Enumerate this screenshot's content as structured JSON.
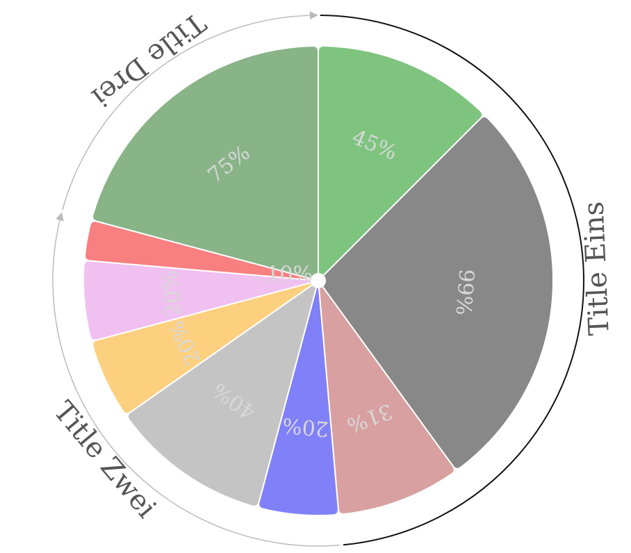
{
  "chart_data": {
    "type": "pie",
    "groups": [
      {
        "title": "Title Eins",
        "slices": [
          {
            "label": "45%",
            "value": 45,
            "color": "#7ec47e",
            "fraction": 0.1245
          },
          {
            "label": "99%",
            "value": 99,
            "color": "#888888",
            "fraction": 0.2739
          },
          {
            "label": "31%",
            "value": 31,
            "color": "#d8a0a0",
            "fraction": 0.0857
          }
        ]
      },
      {
        "title": "Title Zwei",
        "slices": [
          {
            "label": "20%",
            "value": 20,
            "color": "#8080f8",
            "fraction": 0.0553
          },
          {
            "label": "40%",
            "value": 40,
            "color": "#c4c4c4",
            "fraction": 0.1107
          },
          {
            "label": "20%",
            "value": 20,
            "color": "#fdd080",
            "fraction": 0.0553
          },
          {
            "label": "20%",
            "value": 20,
            "color": "#f0c0f0",
            "fraction": 0.0553
          },
          {
            "label": "10%",
            "value": 10,
            "color": "#f88080",
            "fraction": 0.0277
          }
        ]
      },
      {
        "title": "Title Drei",
        "slices": [
          {
            "label": "75%",
            "value": 75,
            "color": "#88b488",
            "fraction": 0.2075
          }
        ]
      }
    ],
    "start_angle_deg": 0,
    "direction": "clockwise",
    "legend": "none"
  }
}
